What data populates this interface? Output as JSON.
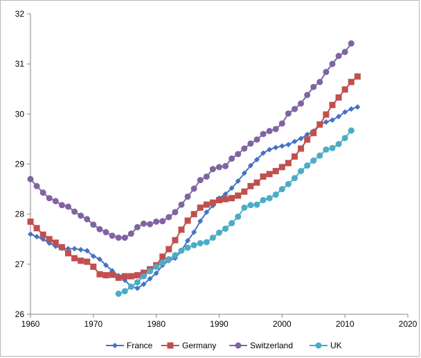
{
  "chart_data": {
    "type": "line",
    "title": "",
    "xlabel": "",
    "ylabel": "",
    "xlim": [
      1960,
      2020
    ],
    "ylim": [
      26,
      32
    ],
    "xticks": [
      1960,
      1970,
      1980,
      1990,
      2000,
      2010,
      2020
    ],
    "yticks": [
      26,
      27,
      28,
      29,
      30,
      31,
      32
    ],
    "grid": false,
    "legend_position": "bottom",
    "series": [
      {
        "name": "France",
        "color": "#4472c4",
        "marker": "diamond",
        "x": [
          1960,
          1961,
          1962,
          1963,
          1964,
          1965,
          1966,
          1967,
          1968,
          1969,
          1970,
          1971,
          1972,
          1973,
          1974,
          1975,
          1976,
          1977,
          1978,
          1979,
          1980,
          1981,
          1982,
          1983,
          1984,
          1985,
          1986,
          1987,
          1988,
          1989,
          1990,
          1991,
          1992,
          1993,
          1994,
          1995,
          1996,
          1997,
          1998,
          1999,
          2000,
          2001,
          2002,
          2003,
          2004,
          2005,
          2006,
          2007,
          2008,
          2009,
          2010,
          2011,
          2012
        ],
        "y": [
          27.6,
          27.55,
          27.5,
          27.42,
          27.36,
          27.32,
          27.31,
          27.31,
          27.29,
          27.27,
          27.16,
          27.1,
          26.98,
          26.87,
          26.77,
          26.68,
          26.56,
          26.52,
          26.6,
          26.71,
          26.82,
          26.98,
          27.07,
          27.12,
          27.27,
          27.47,
          27.64,
          27.86,
          28.04,
          28.17,
          28.32,
          28.4,
          28.52,
          28.66,
          28.82,
          28.97,
          29.09,
          29.22,
          29.29,
          29.33,
          29.36,
          29.39,
          29.45,
          29.51,
          29.59,
          29.66,
          29.79,
          29.84,
          29.88,
          29.95,
          30.04,
          30.1,
          30.14
        ]
      },
      {
        "name": "Germany",
        "color": "#c0504d",
        "marker": "square",
        "x": [
          1960,
          1961,
          1962,
          1963,
          1964,
          1965,
          1966,
          1967,
          1968,
          1969,
          1970,
          1971,
          1972,
          1973,
          1974,
          1975,
          1976,
          1977,
          1978,
          1979,
          1980,
          1981,
          1982,
          1983,
          1984,
          1985,
          1986,
          1987,
          1988,
          1989,
          1990,
          1991,
          1992,
          1993,
          1994,
          1995,
          1996,
          1997,
          1998,
          1999,
          2000,
          2001,
          2002,
          2003,
          2004,
          2005,
          2006,
          2007,
          2008,
          2009,
          2010,
          2011,
          2012
        ],
        "y": [
          27.85,
          27.72,
          27.59,
          27.5,
          27.43,
          27.34,
          27.22,
          27.12,
          27.07,
          27.05,
          26.95,
          26.8,
          26.78,
          26.79,
          26.73,
          26.76,
          26.76,
          26.78,
          26.83,
          26.9,
          26.98,
          27.15,
          27.3,
          27.48,
          27.69,
          27.87,
          28.0,
          28.13,
          28.19,
          28.23,
          28.28,
          28.3,
          28.32,
          28.37,
          28.45,
          28.56,
          28.63,
          28.75,
          28.8,
          28.86,
          28.94,
          29.02,
          29.15,
          29.31,
          29.49,
          29.62,
          29.79,
          29.99,
          30.18,
          30.33,
          30.49,
          30.64,
          30.75
        ]
      },
      {
        "name": "Switzerland",
        "color": "#8064a2",
        "marker": "circle",
        "x": [
          1960,
          1961,
          1962,
          1963,
          1964,
          1965,
          1966,
          1967,
          1968,
          1969,
          1970,
          1971,
          1972,
          1973,
          1974,
          1975,
          1976,
          1977,
          1978,
          1979,
          1980,
          1981,
          1982,
          1983,
          1984,
          1985,
          1986,
          1987,
          1988,
          1989,
          1990,
          1991,
          1992,
          1993,
          1994,
          1995,
          1996,
          1997,
          1998,
          1999,
          2000,
          2001,
          2002,
          2003,
          2004,
          2005,
          2006,
          2007,
          2008,
          2009,
          2010,
          2011
        ],
        "y": [
          28.7,
          28.56,
          28.43,
          28.32,
          28.26,
          28.18,
          28.15,
          28.05,
          27.97,
          27.9,
          27.79,
          27.7,
          27.64,
          27.57,
          27.53,
          27.53,
          27.61,
          27.74,
          27.81,
          27.8,
          27.85,
          27.86,
          27.94,
          28.04,
          28.19,
          28.35,
          28.51,
          28.68,
          28.75,
          28.9,
          28.94,
          28.96,
          29.11,
          29.2,
          29.31,
          29.41,
          29.49,
          29.6,
          29.66,
          29.7,
          29.81,
          30.01,
          30.1,
          30.21,
          30.38,
          30.54,
          30.64,
          30.84,
          31.0,
          31.16,
          31.24,
          31.41
        ]
      },
      {
        "name": "UK",
        "color": "#4bacc6",
        "marker": "circle",
        "x": [
          1974,
          1975,
          1976,
          1977,
          1978,
          1979,
          1980,
          1981,
          1982,
          1983,
          1984,
          1985,
          1986,
          1987,
          1988,
          1989,
          1990,
          1991,
          1992,
          1993,
          1994,
          1995,
          1996,
          1997,
          1998,
          1999,
          2000,
          2001,
          2002,
          2003,
          2004,
          2005,
          2006,
          2007,
          2008,
          2009,
          2010,
          2011
        ],
        "y": [
          26.41,
          26.46,
          26.55,
          26.64,
          26.76,
          26.86,
          26.95,
          27.03,
          27.1,
          27.18,
          27.27,
          27.33,
          27.38,
          27.42,
          27.44,
          27.53,
          27.63,
          27.71,
          27.82,
          27.95,
          28.13,
          28.18,
          28.19,
          28.28,
          28.32,
          28.39,
          28.5,
          28.6,
          28.72,
          28.86,
          28.97,
          29.07,
          29.17,
          29.29,
          29.32,
          29.4,
          29.52,
          29.67
        ]
      }
    ]
  }
}
